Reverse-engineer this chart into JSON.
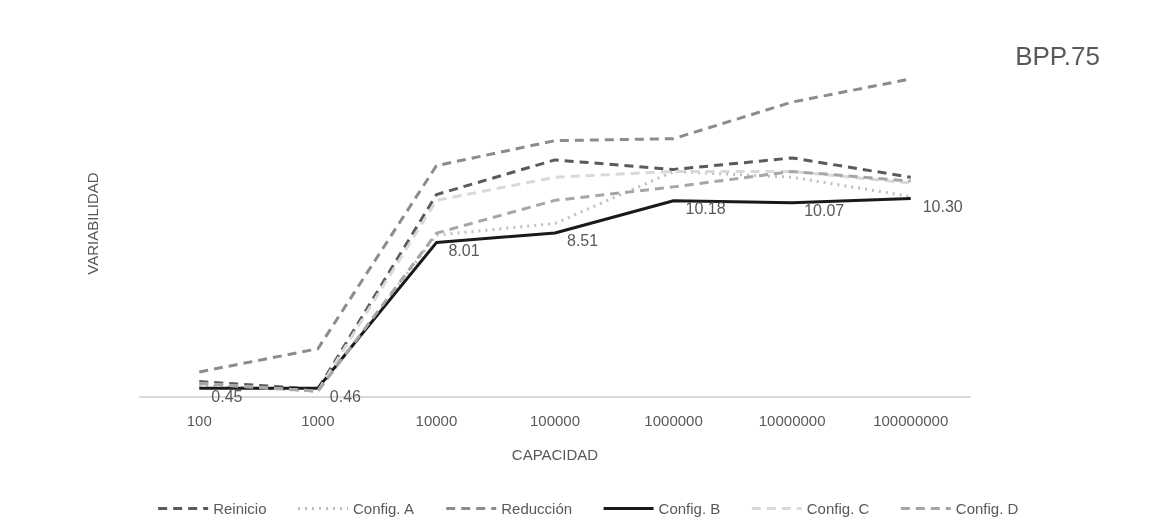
{
  "chart_data": {
    "type": "line",
    "title": "BPP.75",
    "xlabel": "CAPACIDAD",
    "ylabel": "VARIABILIDAD",
    "categories": [
      "100",
      "1000",
      "10000",
      "100000",
      "1000000",
      "10000000",
      "100000000"
    ],
    "tick_labels": "x",
    "grid": false,
    "legend": "bottom",
    "marker": "none",
    "series": [
      {
        "name": "Reinicio",
        "color": "#5a5a5a",
        "line_style": "dashed",
        "values": [
          0.8,
          0.4,
          10.5,
          12.3,
          11.8,
          12.4,
          11.4
        ]
      },
      {
        "name": "Config. A",
        "color": "#bfbfbf",
        "line_style": "dotted",
        "values": [
          0.6,
          0.3,
          8.4,
          9.0,
          11.7,
          11.4,
          10.4
        ]
      },
      {
        "name": "Reducción",
        "color": "#8c8c8c",
        "line_style": "dashed",
        "values": [
          1.3,
          2.5,
          12.0,
          13.3,
          13.4,
          15.3,
          16.5
        ]
      },
      {
        "name": "Config. B",
        "color": "#1a1a1a",
        "line_style": "solid",
        "values": [
          0.45,
          0.46,
          8.01,
          8.51,
          10.18,
          10.07,
          10.3
        ],
        "value_labels": [
          "0.45",
          "0.46",
          "8.01",
          "8.51",
          "10.18",
          "10.07",
          "10.30"
        ]
      },
      {
        "name": "Config. C",
        "color": "#d9d9d9",
        "line_style": "dashed",
        "values": [
          0.7,
          0.3,
          10.2,
          11.4,
          11.7,
          11.7,
          11.1
        ]
      },
      {
        "name": "Config. D",
        "color": "#a6a6a6",
        "line_style": "dashed",
        "values": [
          0.7,
          0.3,
          8.5,
          10.2,
          10.9,
          11.7,
          11.2
        ]
      }
    ]
  }
}
